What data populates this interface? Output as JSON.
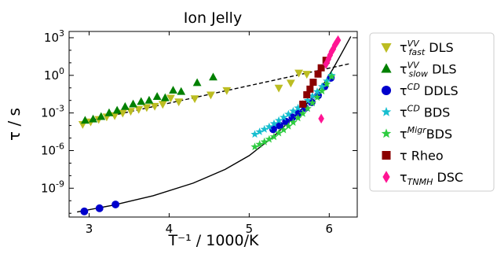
{
  "chart_data": {
    "type": "scatter",
    "title": "Ion Jelly",
    "xlabel": "T⁻¹ / 1000/K",
    "ylabel": "τ / s",
    "xlim": [
      2.75,
      6.35
    ],
    "ylim_log10": [
      -11.3,
      3.5
    ],
    "y_scale": "log",
    "x_ticks": [
      {
        "value": 3,
        "label": "3"
      },
      {
        "value": 4,
        "label": "4"
      },
      {
        "value": 5,
        "label": "5"
      },
      {
        "value": 6,
        "label": "6"
      }
    ],
    "y_ticks": [
      {
        "exp": 3,
        "label": "10",
        "sup": "3"
      },
      {
        "exp": 0,
        "label": "10",
        "sup": "0"
      },
      {
        "exp": -3,
        "label": "10",
        "sup": "-3"
      },
      {
        "exp": -6,
        "label": "10",
        "sup": "-6"
      },
      {
        "exp": -9,
        "label": "10",
        "sup": "-9"
      }
    ],
    "legend_position": "outside-right",
    "series": [
      {
        "name": "τ fast VV DLS",
        "legend": {
          "base": "τ",
          "sup": "VV",
          "sub": "fast",
          "suffix": " DLS"
        },
        "marker": "triangle-down",
        "color": "#bcbd22",
        "points": [
          {
            "x": 2.92,
            "log10y": -3.9
          },
          {
            "x": 3.02,
            "log10y": -3.7
          },
          {
            "x": 3.12,
            "log10y": -3.5
          },
          {
            "x": 3.22,
            "log10y": -3.3
          },
          {
            "x": 3.32,
            "log10y": -3.2
          },
          {
            "x": 3.42,
            "log10y": -3.0
          },
          {
            "x": 3.52,
            "log10y": -2.85
          },
          {
            "x": 3.62,
            "log10y": -2.7
          },
          {
            "x": 3.72,
            "log10y": -2.55
          },
          {
            "x": 3.82,
            "log10y": -2.45
          },
          {
            "x": 3.92,
            "log10y": -2.3
          },
          {
            "x": 4.02,
            "log10y": -1.8
          },
          {
            "x": 4.12,
            "log10y": -2.1
          },
          {
            "x": 4.32,
            "log10y": -1.85
          },
          {
            "x": 4.52,
            "log10y": -1.55
          },
          {
            "x": 4.72,
            "log10y": -1.2
          },
          {
            "x": 5.37,
            "log10y": -1.0
          },
          {
            "x": 5.52,
            "log10y": -0.6
          },
          {
            "x": 5.62,
            "log10y": 0.2
          },
          {
            "x": 5.72,
            "log10y": 0.1
          }
        ]
      },
      {
        "name": "τ slow VV DLS",
        "legend": {
          "base": "τ",
          "sup": "VV",
          "sub": "slow",
          "suffix": " DLS"
        },
        "marker": "triangle-up",
        "color": "#008000",
        "points": [
          {
            "x": 2.95,
            "log10y": -3.6
          },
          {
            "x": 3.05,
            "log10y": -3.5
          },
          {
            "x": 3.15,
            "log10y": -3.3
          },
          {
            "x": 3.25,
            "log10y": -3.0
          },
          {
            "x": 3.35,
            "log10y": -2.8
          },
          {
            "x": 3.45,
            "log10y": -2.5
          },
          {
            "x": 3.55,
            "log10y": -2.3
          },
          {
            "x": 3.65,
            "log10y": -2.1
          },
          {
            "x": 3.75,
            "log10y": -2.0
          },
          {
            "x": 3.85,
            "log10y": -1.7
          },
          {
            "x": 3.95,
            "log10y": -1.8
          },
          {
            "x": 4.05,
            "log10y": -1.2
          },
          {
            "x": 4.15,
            "log10y": -1.3
          },
          {
            "x": 4.35,
            "log10y": -0.6
          },
          {
            "x": 4.55,
            "log10y": -0.15
          }
        ]
      },
      {
        "name": "τ CD DDLS",
        "legend": {
          "base": "τ",
          "sup": "CD",
          "sub": "",
          "suffix": " DDLS"
        },
        "marker": "circle",
        "color": "#0000cc",
        "points": [
          {
            "x": 2.94,
            "log10y": -10.85
          },
          {
            "x": 3.13,
            "log10y": -10.6
          },
          {
            "x": 3.33,
            "log10y": -10.3
          },
          {
            "x": 5.3,
            "log10y": -4.3
          },
          {
            "x": 5.38,
            "log10y": -4.0
          },
          {
            "x": 5.46,
            "log10y": -3.7
          },
          {
            "x": 5.54,
            "log10y": -3.35
          },
          {
            "x": 5.62,
            "log10y": -3.0
          },
          {
            "x": 5.7,
            "log10y": -2.6
          },
          {
            "x": 5.78,
            "log10y": -2.15
          },
          {
            "x": 5.86,
            "log10y": -1.6
          },
          {
            "x": 5.94,
            "log10y": -0.9
          },
          {
            "x": 6.02,
            "log10y": -0.2
          }
        ]
      },
      {
        "name": "τ CD BDS",
        "legend": {
          "base": "τ",
          "sup": "CD",
          "sub": "",
          "suffix": " BDS"
        },
        "marker": "star",
        "color": "#17becf",
        "points": [
          {
            "x": 5.07,
            "log10y": -4.7
          },
          {
            "x": 5.13,
            "log10y": -4.5
          },
          {
            "x": 5.19,
            "log10y": -4.3
          },
          {
            "x": 5.25,
            "log10y": -4.1
          },
          {
            "x": 5.31,
            "log10y": -3.85
          },
          {
            "x": 5.37,
            "log10y": -3.6
          },
          {
            "x": 5.43,
            "log10y": -3.35
          },
          {
            "x": 5.49,
            "log10y": -3.1
          },
          {
            "x": 5.55,
            "log10y": -2.85
          },
          {
            "x": 5.61,
            "log10y": -2.6
          },
          {
            "x": 5.67,
            "log10y": -2.3
          },
          {
            "x": 5.73,
            "log10y": -2.0
          },
          {
            "x": 5.79,
            "log10y": -1.65
          },
          {
            "x": 5.85,
            "log10y": -1.3
          },
          {
            "x": 5.91,
            "log10y": -0.9
          },
          {
            "x": 5.97,
            "log10y": -0.45
          },
          {
            "x": 6.03,
            "log10y": 0.0
          }
        ]
      },
      {
        "name": "τ Migr BDS",
        "legend": {
          "base": "τ",
          "sup": "Migr",
          "sub": "",
          "suffix": "BDS"
        },
        "marker": "star",
        "color": "#2ecc40",
        "points": [
          {
            "x": 5.07,
            "log10y": -5.7
          },
          {
            "x": 5.13,
            "log10y": -5.5
          },
          {
            "x": 5.19,
            "log10y": -5.3
          },
          {
            "x": 5.25,
            "log10y": -5.1
          },
          {
            "x": 5.31,
            "log10y": -4.9
          },
          {
            "x": 5.37,
            "log10y": -4.6
          },
          {
            "x": 5.43,
            "log10y": -4.35
          },
          {
            "x": 5.49,
            "log10y": -4.05
          },
          {
            "x": 5.55,
            "log10y": -3.75
          },
          {
            "x": 5.61,
            "log10y": -3.4
          },
          {
            "x": 5.67,
            "log10y": -3.05
          },
          {
            "x": 5.73,
            "log10y": -2.65
          },
          {
            "x": 5.79,
            "log10y": -2.2
          },
          {
            "x": 5.85,
            "log10y": -1.75
          },
          {
            "x": 5.91,
            "log10y": -1.25
          },
          {
            "x": 5.97,
            "log10y": -0.7
          },
          {
            "x": 6.03,
            "log10y": -0.1
          }
        ]
      },
      {
        "name": "τ Rheo",
        "legend": {
          "base": "τ",
          "sup": "",
          "sub": "",
          "suffix": " Rheo"
        },
        "marker": "square",
        "color": "#8b0000",
        "points": [
          {
            "x": 5.67,
            "log10y": -2.3
          },
          {
            "x": 5.72,
            "log10y": -1.55
          },
          {
            "x": 5.76,
            "log10y": -1.1
          },
          {
            "x": 5.8,
            "log10y": -0.55
          },
          {
            "x": 5.86,
            "log10y": 0.1
          },
          {
            "x": 5.9,
            "log10y": 0.6
          },
          {
            "x": 5.96,
            "log10y": 1.2
          }
        ]
      },
      {
        "name": "τ TNMH DSC",
        "legend": {
          "base": "τ",
          "sup": "",
          "sub": "TNMH",
          "suffix": " DSC"
        },
        "marker": "diamond",
        "color": "#ff1493",
        "points": [
          {
            "x": 5.9,
            "log10y": -3.45
          },
          {
            "x": 5.96,
            "log10y": 0.9
          },
          {
            "x": 5.99,
            "log10y": 1.3
          },
          {
            "x": 6.01,
            "log10y": 1.6
          },
          {
            "x": 6.03,
            "log10y": 1.9
          },
          {
            "x": 6.05,
            "log10y": 2.1
          },
          {
            "x": 6.07,
            "log10y": 2.4
          },
          {
            "x": 6.09,
            "log10y": 2.6
          },
          {
            "x": 6.11,
            "log10y": 2.8
          }
        ]
      }
    ],
    "fit_lines": [
      {
        "style": "dashed",
        "color": "#000000",
        "points": [
          [
            2.9,
            -3.75
          ],
          [
            6.27,
            0.95
          ]
        ]
      },
      {
        "style": "solid",
        "color": "#000000",
        "points": [
          [
            2.85,
            -10.9
          ],
          [
            3.3,
            -10.35
          ],
          [
            3.8,
            -9.6
          ],
          [
            4.3,
            -8.6
          ],
          [
            4.7,
            -7.5
          ],
          [
            5.0,
            -6.4
          ],
          [
            5.3,
            -4.9
          ],
          [
            5.5,
            -3.7
          ],
          [
            5.7,
            -2.4
          ],
          [
            5.85,
            -1.35
          ],
          [
            5.95,
            -0.5
          ],
          [
            6.05,
            0.55
          ],
          [
            6.15,
            1.7
          ],
          [
            6.27,
            3.1
          ]
        ]
      }
    ]
  }
}
